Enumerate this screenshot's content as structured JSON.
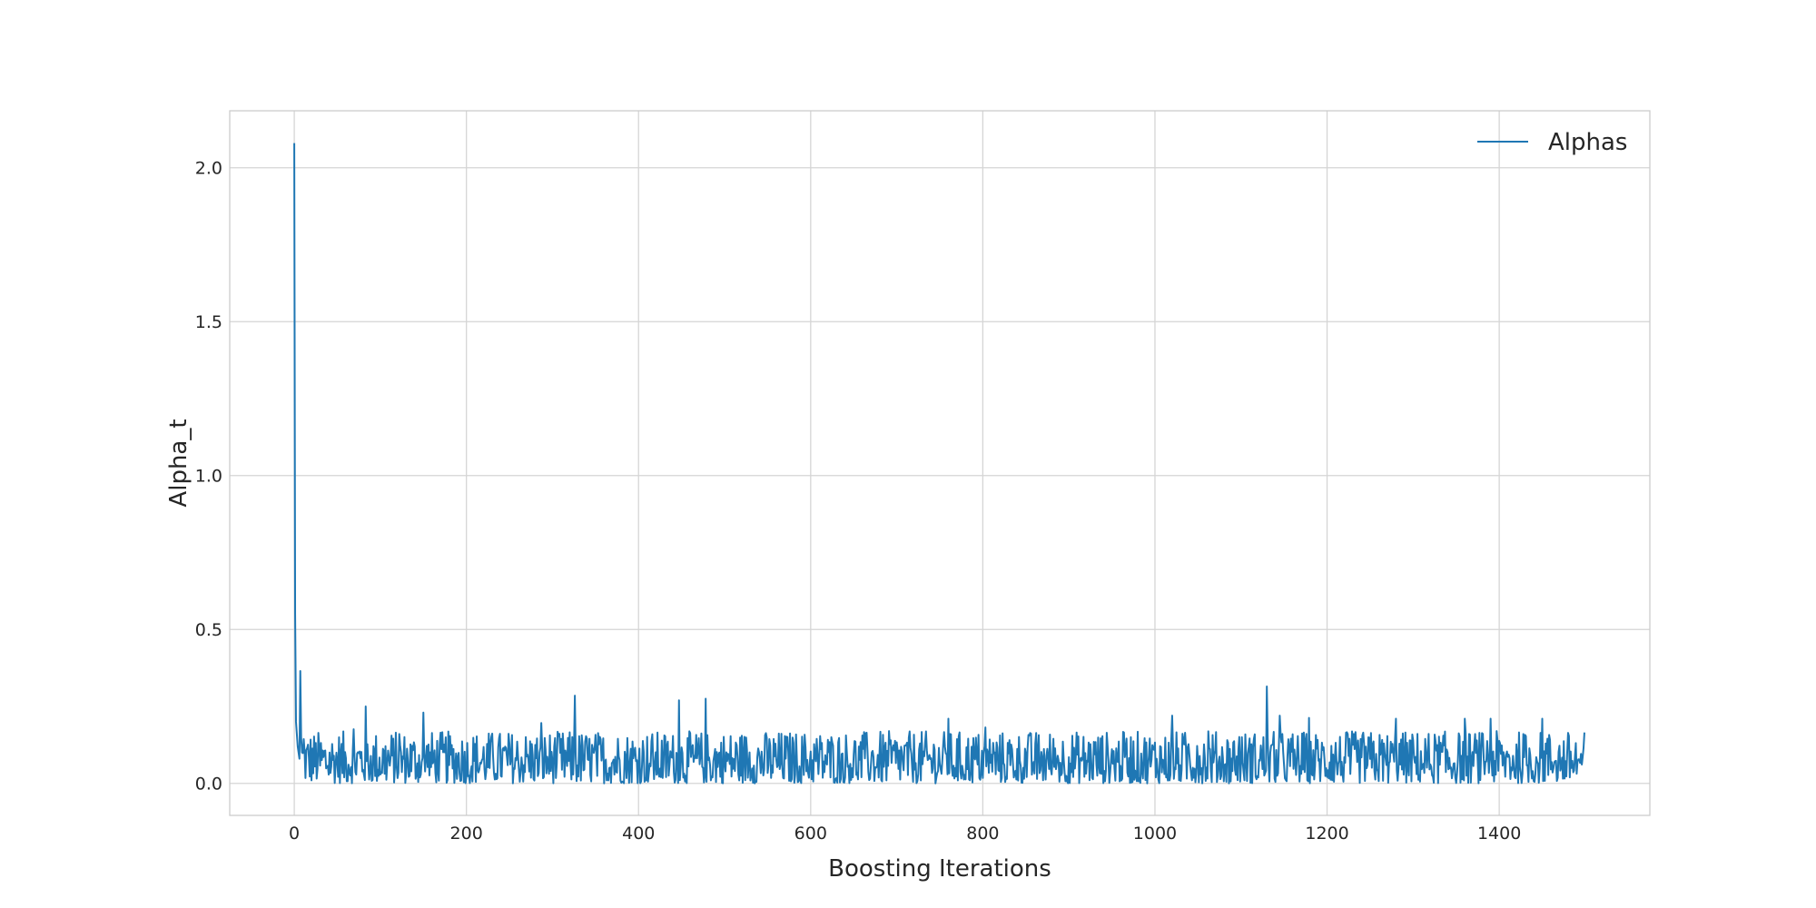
{
  "chart_data": {
    "type": "line",
    "title": "",
    "xlabel": "Boosting Iterations",
    "ylabel": "Alpha_t",
    "xlim": [
      -75,
      1575
    ],
    "ylim": [
      -0.104,
      2.185
    ],
    "x_ticks": [
      0,
      200,
      400,
      600,
      800,
      1000,
      1200,
      1400
    ],
    "y_ticks": [
      0.0,
      0.5,
      1.0,
      1.5,
      2.0
    ],
    "x_tick_labels": [
      "0",
      "200",
      "400",
      "600",
      "800",
      "1000",
      "1200",
      "1400"
    ],
    "y_tick_labels": [
      "0.0",
      "0.5",
      "1.0",
      "1.5",
      "2.0"
    ],
    "grid": true,
    "legend_position": "top-right",
    "series_color": "#1f77b4",
    "series": [
      {
        "name": "Alphas",
        "x_start": 0,
        "x_step": 1,
        "count": 1500,
        "values_note_free": true,
        "initial_values": [
          2.08,
          0.55,
          0.2,
          0.16,
          0.12,
          0.1,
          0.08,
          0.365,
          0.15,
          0.1
        ],
        "peaks": [
          [
            83,
            0.25
          ],
          [
            150,
            0.23
          ],
          [
            326,
            0.285
          ],
          [
            447,
            0.27
          ],
          [
            478,
            0.275
          ],
          [
            760,
            0.21
          ],
          [
            1020,
            0.22
          ],
          [
            1130,
            0.315
          ],
          [
            1145,
            0.22
          ],
          [
            1280,
            0.21
          ],
          [
            1360,
            0.21
          ],
          [
            1390,
            0.21
          ],
          [
            1450,
            0.21
          ]
        ],
        "typical_max": 0.17,
        "typical_min": 0.0
      }
    ]
  }
}
